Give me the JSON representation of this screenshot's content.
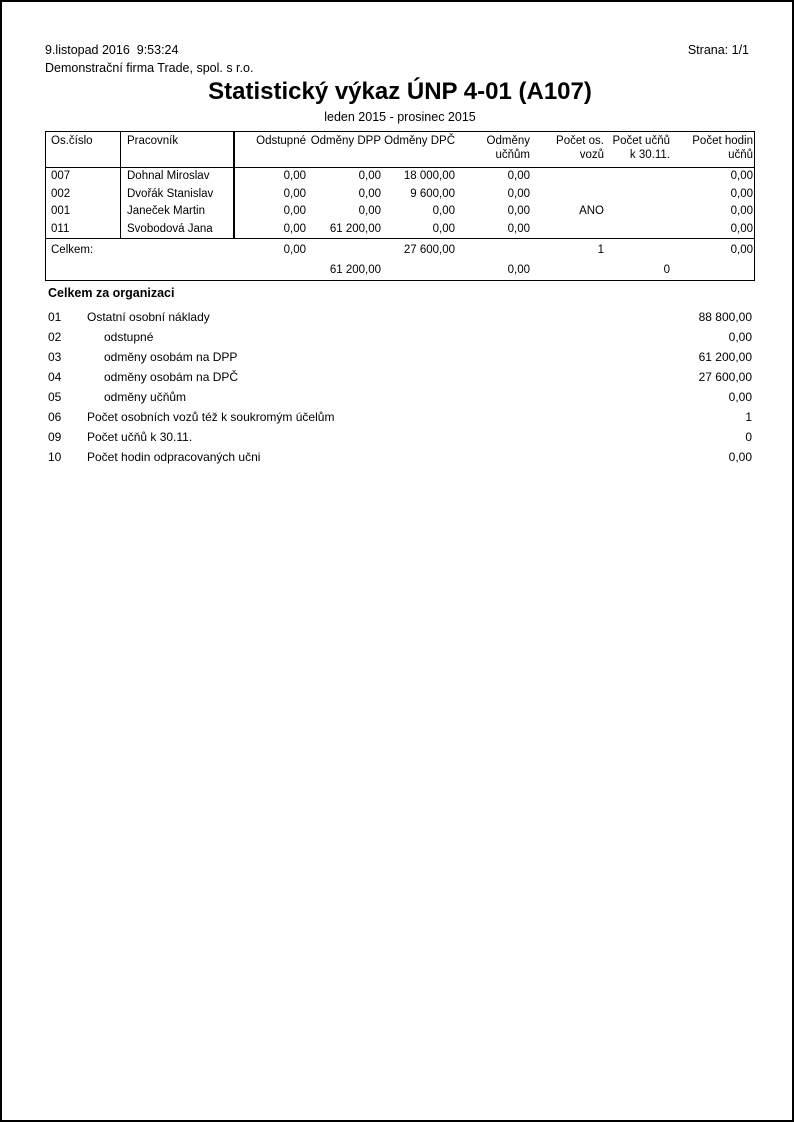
{
  "page": {
    "datetime": "9.listopad 2016  9:53:24",
    "page_label": "Strana: 1/1",
    "company": "Demonstrační firma Trade, spol. s r.o.",
    "title": "Statistický výkaz ÚNP 4-01 (A107)",
    "period": "leden 2015 - prosinec 2015"
  },
  "table": {
    "columns": [
      "Os.číslo",
      "Pracovník",
      "Odstupné",
      "Odměny DPP",
      "Odměny DPČ",
      "Odměny\nučňům",
      "Počet os. vozů",
      "Počet učňů\nk 30.11.",
      "Počet hodin\nučňů"
    ],
    "rows": [
      {
        "id": "007",
        "name": "Dohnal Miroslav",
        "odstupne": "0,00",
        "dpp": "0,00",
        "dpc": "18 000,00",
        "ucnum": "0,00",
        "vozy": "",
        "ucnu": "",
        "hodiny": "0,00"
      },
      {
        "id": "002",
        "name": "Dvořák Stanislav",
        "odstupne": "0,00",
        "dpp": "0,00",
        "dpc": "9 600,00",
        "ucnum": "0,00",
        "vozy": "",
        "ucnu": "",
        "hodiny": "0,00"
      },
      {
        "id": "001",
        "name": "Janeček Martin",
        "odstupne": "0,00",
        "dpp": "0,00",
        "dpc": "0,00",
        "ucnum": "0,00",
        "vozy": "ANO",
        "ucnu": "",
        "hodiny": "0,00"
      },
      {
        "id": "011",
        "name": "Svobodová Jana",
        "odstupne": "0,00",
        "dpp": "61 200,00",
        "dpc": "0,00",
        "ucnum": "0,00",
        "vozy": "",
        "ucnu": "",
        "hodiny": "0,00"
      }
    ],
    "totals": {
      "label": "Celkem:",
      "line1": {
        "odstupne": "0,00",
        "dpc": "27 600,00",
        "vozy": "1",
        "hodiny": "0,00"
      },
      "line2": {
        "dpp": "61 200,00",
        "ucnum": "0,00",
        "ucnu": "0"
      }
    }
  },
  "summary": {
    "heading": "Celkem za organizaci",
    "items": [
      {
        "code": "01",
        "label": "Ostatní osobní náklady",
        "value": "88 800,00"
      },
      {
        "code": "02",
        "label": "odstupné",
        "value": "0,00"
      },
      {
        "code": "03",
        "label": "odměny osobám na DPP",
        "value": "61 200,00"
      },
      {
        "code": "04",
        "label": "odměny osobám na DPČ",
        "value": "27 600,00"
      },
      {
        "code": "05",
        "label": "odměny učňům",
        "value": "0,00"
      },
      {
        "code": "06",
        "label": "Počet osobních vozů též k soukromým účelům",
        "value": "1"
      },
      {
        "code": "09",
        "label": "Počet učňů k 30.11.",
        "value": "0"
      },
      {
        "code": "10",
        "label": "Počet hodin odpracovaných učni",
        "value": "0,00"
      }
    ]
  }
}
